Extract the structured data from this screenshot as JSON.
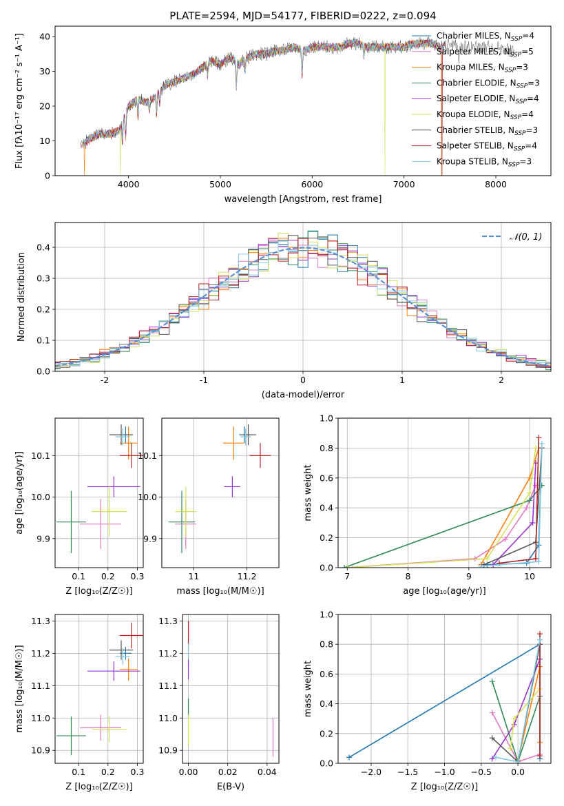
{
  "colors": {
    "chabrier_miles": "#1f77b4",
    "salpeter_miles": "#e377c2",
    "kroupa_miles": "#ff7f0e",
    "chabrier_elodie": "#2e8b57",
    "salpeter_elodie": "#9b30d0",
    "kroupa_elodie": "#d4e157",
    "chabrier_stelib": "#555555",
    "salpeter_stelib": "#b22222",
    "kroupa_stelib": "#7ec8e3",
    "normal": "#5b8fd6"
  },
  "chart_data": [
    {
      "id": "spectrum",
      "type": "line",
      "title": "PLATE=2594, MJD=54177, FIBERID=0222, z=0.094",
      "xlabel": "wavelength [Angstrom, rest frame]",
      "ylabel": "Flux [fλ10⁻¹⁷ erg cm⁻² s⁻¹ A⁻¹]",
      "xlim": [
        3200,
        8600
      ],
      "ylim": [
        0,
        43
      ],
      "xticks": [
        4000,
        5000,
        6000,
        7000,
        8000
      ],
      "yticks": [
        0,
        10,
        20,
        30,
        40
      ],
      "grid": false,
      "legend_position": "top-right",
      "legend": [
        {
          "label": "Chabrier MILES, N",
          "sub": "SSP",
          "suffix": "=4"
        },
        {
          "label": "Salpeter MILES, N",
          "sub": "SSP",
          "suffix": "=5"
        },
        {
          "label": "Kroupa MILES, N",
          "sub": "SSP",
          "suffix": "=3"
        },
        {
          "label": "Chabrier ELODIE, N",
          "sub": "SSP",
          "suffix": "=3"
        },
        {
          "label": "Salpeter ELODIE, N",
          "sub": "SSP",
          "suffix": "=4"
        },
        {
          "label": "Kroupa ELODIE, N",
          "sub": "SSP",
          "suffix": "=4"
        },
        {
          "label": "Chabrier STELIB, N",
          "sub": "SSP",
          "suffix": "=3"
        },
        {
          "label": "Salpeter STELIB, N",
          "sub": "SSP",
          "suffix": "=4"
        },
        {
          "label": "Kroupa STELIB, N",
          "sub": "SSP",
          "suffix": "=3"
        }
      ],
      "continuum": [
        [
          3500,
          9
        ],
        [
          3600,
          11
        ],
        [
          3700,
          12
        ],
        [
          3800,
          12
        ],
        [
          3900,
          13
        ],
        [
          4000,
          20
        ],
        [
          4100,
          22
        ],
        [
          4200,
          21
        ],
        [
          4300,
          23
        ],
        [
          4400,
          26
        ],
        [
          4500,
          27
        ],
        [
          4600,
          28
        ],
        [
          4700,
          29
        ],
        [
          4800,
          31
        ],
        [
          4900,
          33
        ],
        [
          5000,
          32
        ],
        [
          5100,
          34
        ],
        [
          5200,
          32
        ],
        [
          5300,
          34
        ],
        [
          5400,
          35
        ],
        [
          5500,
          35
        ],
        [
          5600,
          36
        ],
        [
          5700,
          36
        ],
        [
          5800,
          37
        ],
        [
          5900,
          36
        ],
        [
          6000,
          37
        ],
        [
          6100,
          37
        ],
        [
          6200,
          37
        ],
        [
          6300,
          37
        ],
        [
          6400,
          38
        ],
        [
          6500,
          38
        ],
        [
          6600,
          37
        ],
        [
          6700,
          37
        ],
        [
          6800,
          37
        ],
        [
          6900,
          37
        ],
        [
          7000,
          37
        ],
        [
          7100,
          38
        ],
        [
          7200,
          38
        ],
        [
          7300,
          38
        ],
        [
          7400,
          37
        ],
        [
          7500,
          38
        ],
        [
          7600,
          37
        ],
        [
          7800,
          37
        ],
        [
          8000,
          37
        ],
        [
          8200,
          36
        ]
      ],
      "absorption_lines": [
        [
          3934,
          6
        ],
        [
          3969,
          7
        ],
        [
          4102,
          5
        ],
        [
          4227,
          3
        ],
        [
          4305,
          6
        ],
        [
          4340,
          4
        ],
        [
          4861,
          4
        ],
        [
          5175,
          7
        ],
        [
          5270,
          3
        ],
        [
          5890,
          8
        ],
        [
          6563,
          3
        ],
        [
          7600,
          5
        ]
      ],
      "drops_to_zero": [
        [
          3910,
          "kroupa_elodie"
        ],
        [
          3520,
          "kroupa_miles"
        ],
        [
          6790,
          "kroupa_elodie"
        ],
        [
          7410,
          "kroupa_miles"
        ],
        [
          7415,
          "salpeter_stelib"
        ]
      ]
    },
    {
      "id": "residual_histogram",
      "type": "histogram",
      "xlabel": "(data-model)/error",
      "ylabel": "Normed distribution",
      "xlim": [
        -2.5,
        2.5
      ],
      "ylim": [
        0,
        0.48
      ],
      "xticks": [
        -2,
        -1,
        0,
        1,
        2
      ],
      "yticks": [
        0.0,
        0.1,
        0.2,
        0.3,
        0.4
      ],
      "grid": true,
      "legend_position": "top-right",
      "legend": [
        "𝒩(0, 1)"
      ],
      "bin_width": 0.1,
      "series": [
        {
          "name": "Chabrier MILES",
          "color_key": "chabrier_miles",
          "seed": 3
        },
        {
          "name": "Salpeter MILES",
          "color_key": "salpeter_miles",
          "seed": 7
        },
        {
          "name": "Kroupa MILES",
          "color_key": "kroupa_miles",
          "seed": 11
        },
        {
          "name": "Chabrier ELODIE",
          "color_key": "chabrier_elodie",
          "seed": 17
        },
        {
          "name": "Salpeter ELODIE",
          "color_key": "salpeter_elodie",
          "seed": 23
        },
        {
          "name": "Kroupa ELODIE",
          "color_key": "kroupa_elodie",
          "seed": 29
        },
        {
          "name": "Chabrier STELIB",
          "color_key": "chabrier_stelib",
          "seed": 31
        },
        {
          "name": "Salpeter STELIB",
          "color_key": "salpeter_stelib",
          "seed": 37
        },
        {
          "name": "Kroupa STELIB",
          "color_key": "kroupa_stelib",
          "seed": 41
        }
      ],
      "normal_curve": {
        "mean": 0,
        "sigma": 1
      }
    },
    {
      "id": "age_vs_Z",
      "type": "scatter",
      "xlabel": "Z [log₁₀(Z/Z☉)]",
      "ylabel": "age  [log₁₀(age/yr)]",
      "xlim": [
        0.02,
        0.32
      ],
      "ylim": [
        9.83,
        10.19
      ],
      "xticks": [
        0.1,
        0.2,
        0.3
      ],
      "yticks": [
        9.9,
        10.0,
        10.1
      ],
      "grid": true,
      "points": [
        {
          "c": "chabrier_miles",
          "x": 0.26,
          "y": 10.15,
          "xe": 0.02,
          "ye": 0.02
        },
        {
          "c": "salpeter_miles",
          "x": 0.175,
          "y": 9.935,
          "xe": 0.07,
          "ye": 0.06
        },
        {
          "c": "kroupa_miles",
          "x": 0.27,
          "y": 10.13,
          "xe": 0.03,
          "ye": 0.04
        },
        {
          "c": "chabrier_elodie",
          "x": 0.075,
          "y": 9.94,
          "xe": 0.05,
          "ye": 0.075
        },
        {
          "c": "salpeter_elodie",
          "x": 0.22,
          "y": 10.025,
          "xe": 0.09,
          "ye": 0.025
        },
        {
          "c": "kroupa_elodie",
          "x": 0.205,
          "y": 9.965,
          "xe": 0.06,
          "ye": 0.06
        },
        {
          "c": "chabrier_stelib",
          "x": 0.245,
          "y": 10.15,
          "xe": 0.04,
          "ye": 0.025
        },
        {
          "c": "salpeter_stelib",
          "x": 0.28,
          "y": 10.1,
          "xe": 0.04,
          "ye": 0.03
        },
        {
          "c": "kroupa_stelib",
          "x": 0.25,
          "y": 10.145,
          "xe": 0.025,
          "ye": 0.02
        }
      ]
    },
    {
      "id": "age_vs_mass",
      "type": "scatter",
      "xlabel": "mass [log₁₀(M/M☉)]",
      "ylabel": "",
      "xlim": [
        10.88,
        11.32
      ],
      "ylim": [
        9.83,
        10.19
      ],
      "xticks": [
        11.0,
        11.2
      ],
      "yticks": [
        9.9,
        10.0,
        10.1
      ],
      "grid": true,
      "points": [
        {
          "c": "chabrier_miles",
          "x": 11.19,
          "y": 10.15,
          "xe": 0.02,
          "ye": 0.02
        },
        {
          "c": "salpeter_miles",
          "x": 10.97,
          "y": 9.935,
          "xe": 0.04,
          "ye": 0.06
        },
        {
          "c": "kroupa_miles",
          "x": 11.15,
          "y": 10.13,
          "xe": 0.04,
          "ye": 0.04
        },
        {
          "c": "chabrier_elodie",
          "x": 10.955,
          "y": 9.94,
          "xe": 0.05,
          "ye": 0.075
        },
        {
          "c": "salpeter_elodie",
          "x": 11.145,
          "y": 10.025,
          "xe": 0.03,
          "ye": 0.025
        },
        {
          "c": "kroupa_elodie",
          "x": 10.97,
          "y": 9.965,
          "xe": 0.04,
          "ye": 0.06
        },
        {
          "c": "chabrier_stelib",
          "x": 11.205,
          "y": 10.15,
          "xe": 0.03,
          "ye": 0.025
        },
        {
          "c": "salpeter_stelib",
          "x": 11.25,
          "y": 10.1,
          "xe": 0.04,
          "ye": 0.03
        },
        {
          "c": "kroupa_stelib",
          "x": 11.195,
          "y": 10.145,
          "xe": 0.02,
          "ye": 0.02
        }
      ]
    },
    {
      "id": "mass_weight_vs_age",
      "type": "line",
      "xlabel": "age  [log₁₀(age/yr)]",
      "ylabel": "mass weight",
      "xlim": [
        6.85,
        10.35
      ],
      "ylim": [
        0,
        1
      ],
      "xticks": [
        7,
        8,
        9,
        10
      ],
      "yticks": [
        0.0,
        0.2,
        0.4,
        0.6,
        0.8,
        1.0
      ],
      "grid": true,
      "series": [
        {
          "c": "chabrier_miles",
          "pts": [
            [
              9.3,
              0.02
            ],
            [
              9.95,
              0.03
            ],
            [
              10.15,
              0.15
            ],
            [
              10.2,
              0.8
            ]
          ]
        },
        {
          "c": "salpeter_miles",
          "pts": [
            [
              7.0,
              0.0
            ],
            [
              9.1,
              0.06
            ],
            [
              9.6,
              0.19
            ],
            [
              9.95,
              0.4
            ],
            [
              10.1,
              0.55
            ]
          ]
        },
        {
          "c": "kroupa_miles",
          "pts": [
            [
              9.2,
              0.02
            ],
            [
              10.0,
              0.6
            ],
            [
              10.15,
              0.8
            ]
          ]
        },
        {
          "c": "chabrier_elodie",
          "pts": [
            [
              6.95,
              0.0
            ],
            [
              10.0,
              0.45
            ],
            [
              10.2,
              0.55
            ]
          ]
        },
        {
          "c": "salpeter_elodie",
          "pts": [
            [
              9.4,
              0.02
            ],
            [
              10.05,
              0.3
            ],
            [
              10.1,
              0.7
            ]
          ]
        },
        {
          "c": "kroupa_elodie",
          "pts": [
            [
              7.0,
              0.0
            ],
            [
              9.3,
              0.06
            ],
            [
              10.0,
              0.5
            ],
            [
              10.1,
              0.8
            ]
          ]
        },
        {
          "c": "chabrier_stelib",
          "pts": [
            [
              9.25,
              0.02
            ],
            [
              10.1,
              0.17
            ],
            [
              10.2,
              0.8
            ]
          ]
        },
        {
          "c": "salpeter_stelib",
          "pts": [
            [
              9.5,
              0.03
            ],
            [
              10.1,
              0.06
            ],
            [
              10.15,
              0.87
            ]
          ]
        },
        {
          "c": "kroupa_stelib",
          "pts": [
            [
              9.2,
              0.01
            ],
            [
              10.15,
              0.04
            ],
            [
              10.2,
              0.83
            ]
          ]
        }
      ]
    },
    {
      "id": "mass_vs_Z",
      "type": "scatter",
      "xlabel": "Z [log₁₀(Z/Z☉)]",
      "ylabel": "mass [log₁₀(M/M☉)]",
      "xlim": [
        0.02,
        0.32
      ],
      "ylim": [
        10.86,
        11.32
      ],
      "xticks": [
        0.1,
        0.2,
        0.3
      ],
      "yticks": [
        10.9,
        11.0,
        11.1,
        11.2,
        11.3
      ],
      "grid": true,
      "points": [
        {
          "c": "chabrier_miles",
          "x": 0.26,
          "y": 11.2,
          "xe": 0.02,
          "ye": 0.02
        },
        {
          "c": "salpeter_miles",
          "x": 0.175,
          "y": 10.97,
          "xe": 0.07,
          "ye": 0.04
        },
        {
          "c": "kroupa_miles",
          "x": 0.27,
          "y": 11.15,
          "xe": 0.03,
          "ye": 0.035
        },
        {
          "c": "chabrier_elodie",
          "x": 0.075,
          "y": 10.945,
          "xe": 0.05,
          "ye": 0.06
        },
        {
          "c": "salpeter_elodie",
          "x": 0.22,
          "y": 11.145,
          "xe": 0.09,
          "ye": 0.03
        },
        {
          "c": "kroupa_elodie",
          "x": 0.205,
          "y": 10.965,
          "xe": 0.06,
          "ye": 0.04
        },
        {
          "c": "chabrier_stelib",
          "x": 0.245,
          "y": 11.21,
          "xe": 0.04,
          "ye": 0.03
        },
        {
          "c": "salpeter_stelib",
          "x": 0.28,
          "y": 11.255,
          "xe": 0.04,
          "ye": 0.04
        },
        {
          "c": "kroupa_stelib",
          "x": 0.25,
          "y": 11.19,
          "xe": 0.025,
          "ye": 0.025
        }
      ]
    },
    {
      "id": "mass_vs_ebv",
      "type": "scatter",
      "xlabel": "E(B-V)",
      "ylabel": "",
      "xlim": [
        -0.003,
        0.046
      ],
      "ylim": [
        10.86,
        11.32
      ],
      "xticks": [
        0.0,
        0.02,
        0.04
      ],
      "yticks": [
        10.9,
        11.0,
        11.1,
        11.2,
        11.3
      ],
      "xtick_labels": [
        "0.00",
        "0.02",
        "0.04"
      ],
      "grid": true,
      "points": [
        {
          "c": "salpeter_stelib",
          "x": 0.0,
          "y": 11.255,
          "xe": 0,
          "ye": 0.045
        },
        {
          "c": "kroupa_stelib",
          "x": 0.0,
          "y": 11.2,
          "xe": 0,
          "ye": 0.03
        },
        {
          "c": "salpeter_elodie",
          "x": 0.0,
          "y": 11.15,
          "xe": 0,
          "ye": 0.03
        },
        {
          "c": "chabrier_elodie",
          "x": 0.0,
          "y": 11.03,
          "xe": 0,
          "ye": 0.03
        },
        {
          "c": "kroupa_elodie",
          "x": 0.0,
          "y": 10.96,
          "xe": 0,
          "ye": 0.05
        },
        {
          "c": "salpeter_miles",
          "x": 0.043,
          "y": 10.94,
          "xe": 0,
          "ye": 0.06
        }
      ]
    },
    {
      "id": "mass_weight_vs_Z",
      "type": "line",
      "xlabel": "Z [log₁₀(Z/Z☉)]",
      "ylabel": "mass weight",
      "xlim": [
        -2.45,
        0.45
      ],
      "ylim": [
        0,
        1
      ],
      "xticks": [
        -2.0,
        -1.5,
        -1.0,
        -0.5,
        0.0
      ],
      "xtick_labels": [
        "−2.0",
        "−1.5",
        "−1.0",
        "−0.5",
        "0.0"
      ],
      "yticks": [
        0.0,
        0.2,
        0.4,
        0.6,
        0.8,
        1.0
      ],
      "grid": true,
      "series": [
        {
          "c": "chabrier_miles",
          "pts": [
            [
              -2.3,
              0.04
            ],
            [
              0.3,
              0.8
            ],
            [
              0.3,
              0.03
            ]
          ]
        },
        {
          "c": "salpeter_miles",
          "pts": [
            [
              -0.35,
              0.34
            ],
            [
              0.0,
              0.01
            ],
            [
              0.3,
              0.06
            ]
          ]
        },
        {
          "c": "kroupa_miles",
          "pts": [
            [
              0.0,
              0.02
            ],
            [
              0.3,
              0.65
            ],
            [
              0.3,
              0.14
            ]
          ]
        },
        {
          "c": "chabrier_elodie",
          "pts": [
            [
              -0.35,
              0.55
            ],
            [
              0.0,
              0.01
            ],
            [
              0.3,
              0.45
            ]
          ]
        },
        {
          "c": "salpeter_elodie",
          "pts": [
            [
              -0.35,
              0.03
            ],
            [
              -0.05,
              0.26
            ],
            [
              0.3,
              0.7
            ]
          ]
        },
        {
          "c": "kroupa_elodie",
          "pts": [
            [
              -0.1,
              0.1
            ],
            [
              -0.05,
              0.3
            ],
            [
              0.3,
              0.5
            ]
          ]
        },
        {
          "c": "chabrier_stelib",
          "pts": [
            [
              -0.35,
              0.17
            ],
            [
              0.0,
              0.01
            ],
            [
              0.3,
              0.8
            ]
          ]
        },
        {
          "c": "salpeter_stelib",
          "pts": [
            [
              0.3,
              0.05
            ],
            [
              0.3,
              0.87
            ]
          ]
        },
        {
          "c": "kroupa_stelib",
          "pts": [
            [
              -0.3,
              0.04
            ],
            [
              0.0,
              0.01
            ],
            [
              0.3,
              0.83
            ]
          ]
        }
      ]
    }
  ]
}
